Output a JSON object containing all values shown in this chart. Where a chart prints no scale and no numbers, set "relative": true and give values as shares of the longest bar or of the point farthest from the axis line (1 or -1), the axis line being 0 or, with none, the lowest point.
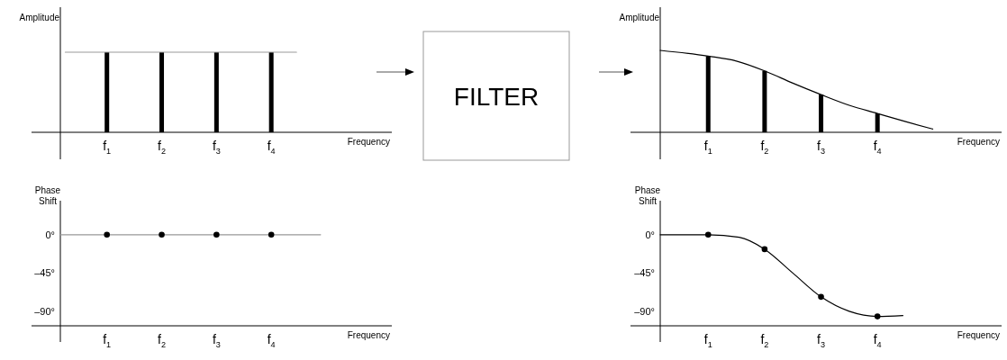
{
  "chart_data": [
    {
      "type": "bar",
      "relative": true,
      "xlabel": "Frequency",
      "ylabel": "Amplitude",
      "xlim": [
        0.15,
        6.2
      ],
      "xticks": [
        {
          "value": 1,
          "label": "f$_{1}$"
        },
        {
          "value": 2,
          "label": "f$_{2}$"
        },
        {
          "value": 3,
          "label": "f$_{3}$"
        },
        {
          "value": 4,
          "label": "f$_{4}$"
        }
      ],
      "series": [
        {
          "type": "bar",
          "color": "#000000",
          "x": [
            1,
            2,
            3,
            4
          ],
          "values": [
            1,
            1,
            1,
            1
          ]
        },
        {
          "type": "line",
          "color": "#999999",
          "x": [
            0.24,
            4.46
          ],
          "values": [
            1,
            1
          ]
        }
      ]
    },
    {
      "type": "other",
      "title": "FILTER"
    },
    {
      "type": "bar",
      "relative": true,
      "xlabel": "Frequency",
      "ylabel": "Amplitude",
      "xlim": [
        0.15,
        6.2
      ],
      "xticks": [
        {
          "value": 1,
          "label": "f$_{1}$"
        },
        {
          "value": 2,
          "label": "f$_{2}$"
        },
        {
          "value": 3,
          "label": "f$_{3}$"
        },
        {
          "value": 4,
          "label": "f$_{4}$"
        }
      ],
      "series": [
        {
          "type": "bar",
          "color": "#000000",
          "x": [
            1,
            2,
            3,
            4
          ],
          "values": [
            0.93,
            0.75,
            0.46,
            0.23
          ]
        },
        {
          "type": "line",
          "color": "#000000",
          "x": [
            0.15,
            1,
            1.5,
            2,
            2.5,
            3,
            3.5,
            4,
            4.5,
            4.98
          ],
          "values": [
            1,
            0.93,
            0.87,
            0.75,
            0.6,
            0.46,
            0.33,
            0.23,
            0.13,
            0.04
          ]
        }
      ]
    },
    {
      "type": "scatter",
      "xlabel": "Frequency",
      "ylabel": "Phase Shift",
      "xlim": [
        0.15,
        6.2
      ],
      "ylim": [
        -107,
        40
      ],
      "xticks": [
        {
          "value": 1,
          "label": "f$_{1}$"
        },
        {
          "value": 2,
          "label": "f$_{2}$"
        },
        {
          "value": 3,
          "label": "f$_{3}$"
        },
        {
          "value": 4,
          "label": "f$_{4}$"
        }
      ],
      "yticks": [
        {
          "value": 0,
          "label": "0°"
        },
        {
          "value": -45,
          "label": "–45°"
        },
        {
          "value": -90,
          "label": "–90°"
        }
      ],
      "series": [
        {
          "type": "line",
          "color": "#999999",
          "x": [
            0.15,
            4.9
          ],
          "values": [
            0,
            0
          ]
        },
        {
          "type": "scatter",
          "color": "#000000",
          "marker": "circle",
          "x": [
            1,
            2,
            3,
            4
          ],
          "values": [
            0,
            0,
            0,
            0
          ]
        }
      ]
    },
    {
      "type": "scatter",
      "xlabel": "Frequency",
      "ylabel": "Phase Shift",
      "xlim": [
        0.15,
        6.2
      ],
      "ylim": [
        -107,
        40
      ],
      "xticks": [
        {
          "value": 1,
          "label": "f$_{1}$"
        },
        {
          "value": 2,
          "label": "f$_{2}$"
        },
        {
          "value": 3,
          "label": "f$_{3}$"
        },
        {
          "value": 4,
          "label": "f$_{4}$"
        }
      ],
      "yticks": [
        {
          "value": 0,
          "label": "0°"
        },
        {
          "value": -45,
          "label": "–45°"
        },
        {
          "value": -90,
          "label": "–90°"
        }
      ],
      "series": [
        {
          "type": "line",
          "color": "#000000",
          "x": [
            0.15,
            1,
            1.55,
            2,
            2.5,
            3,
            3.5,
            4,
            4.45
          ],
          "values": [
            0,
            0,
            -3,
            -17,
            -45,
            -73,
            -90,
            -96,
            -95
          ]
        },
        {
          "type": "scatter",
          "color": "#000000",
          "marker": "circle",
          "x": [
            1,
            2,
            3,
            4
          ],
          "values": [
            0,
            -17,
            -73,
            -96
          ]
        }
      ]
    }
  ]
}
